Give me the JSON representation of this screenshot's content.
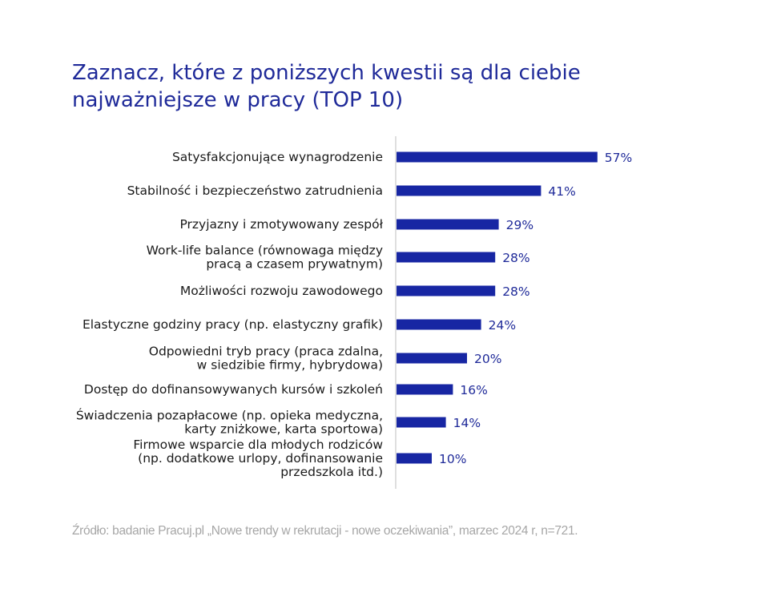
{
  "title": "Zaznacz, które z poniższych kwestii są dla ciebie najważniejsze w pracy (TOP 10)",
  "source": "Źródło: badanie Pracuj.pl „Nowe trendy w rekrutacji - nowe oczekiwania”, marzec 2024 r, n=721.",
  "colors": {
    "bar": "#1726a3",
    "title": "#1f2a99",
    "value_text": "#1f2a99",
    "axis": "#bfbfbf"
  },
  "chart_data": {
    "type": "bar",
    "orientation": "horizontal",
    "title": "Zaznacz, które z poniższych kwestii są dla ciebie najważniejsze w pracy (TOP 10)",
    "categories": [
      [
        "Satysfakcjonujące wynagrodzenie"
      ],
      [
        "Stabilność i bezpieczeństwo zatrudnienia"
      ],
      [
        "Przyjazny i zmotywowany zespół"
      ],
      [
        "Work-life balance (równowaga między",
        "pracą a czasem prywatnym)"
      ],
      [
        "Możliwości rozwoju zawodowego"
      ],
      [
        "Elastyczne godziny pracy (np. elastyczny grafik)"
      ],
      [
        "Odpowiedni tryb pracy (praca zdalna,",
        "w siedzibie firmy, hybrydowa)"
      ],
      [
        "Dostęp do dofinansowywanych kursów i szkoleń"
      ],
      [
        "Świadczenia pozapłacowe (np. opieka medyczna,",
        "karty zniżkowe, karta sportowa)"
      ],
      [
        "Firmowe wsparcie dla młodych rodziców",
        "(np. dodatkowe urlopy, dofinansowanie",
        "przedszkola itd.)"
      ]
    ],
    "values": [
      57,
      41,
      29,
      28,
      28,
      24,
      20,
      16,
      14,
      10
    ],
    "value_labels": [
      "57%",
      "41%",
      "29%",
      "28%",
      "28%",
      "24%",
      "20%",
      "16%",
      "14%",
      "10%"
    ],
    "xlabel": "",
    "ylabel": "",
    "xlim": [
      0,
      100
    ],
    "grid": false,
    "legend": "none"
  }
}
